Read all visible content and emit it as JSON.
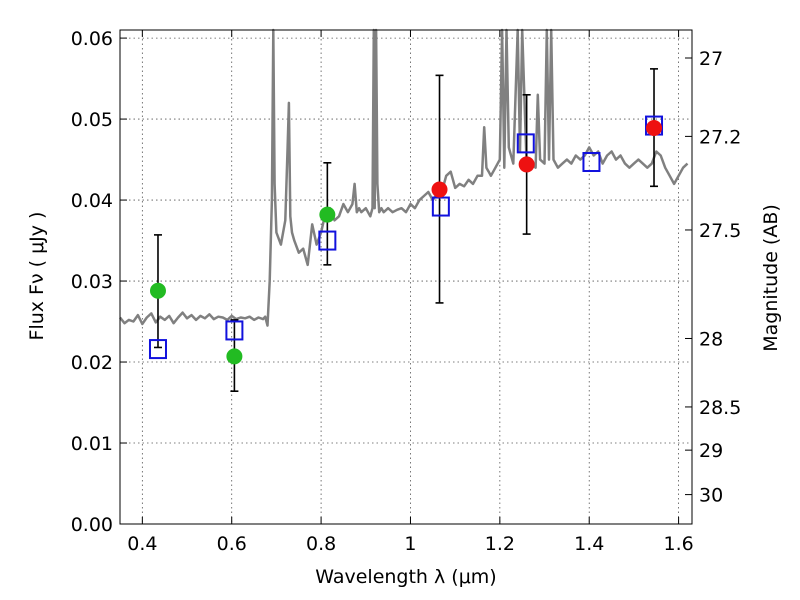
{
  "chart_data": {
    "type": "scatter",
    "title": "",
    "xlabel": "Wavelength  λ (μm)",
    "ylabel": "Flux  Fν  ( μJy )",
    "ylabel_right": "Magnitude (AB)",
    "xlim": [
      0.35,
      1.63
    ],
    "ylim": [
      0.0,
      0.061
    ],
    "grid": true,
    "x_ticks": [
      {
        "value": 0.4,
        "label": "0.4"
      },
      {
        "value": 0.6,
        "label": "0.6"
      },
      {
        "value": 0.8,
        "label": "0.8"
      },
      {
        "value": 1.0,
        "label": "1"
      },
      {
        "value": 1.2,
        "label": "1.2"
      },
      {
        "value": 1.4,
        "label": "1.4"
      },
      {
        "value": 1.6,
        "label": "1.6"
      }
    ],
    "y_ticks": [
      {
        "value": 0.0,
        "label": "0.00"
      },
      {
        "value": 0.01,
        "label": "0.01"
      },
      {
        "value": 0.02,
        "label": "0.02"
      },
      {
        "value": 0.03,
        "label": "0.03"
      },
      {
        "value": 0.04,
        "label": "0.04"
      },
      {
        "value": 0.05,
        "label": "0.05"
      },
      {
        "value": 0.06,
        "label": "0.06"
      }
    ],
    "right_ticks": [
      {
        "label": "27",
        "mag": 27.0
      },
      {
        "label": "27.2",
        "mag": 27.2
      },
      {
        "label": "27.5",
        "mag": 27.5
      },
      {
        "label": "28",
        "mag": 28.0
      },
      {
        "label": "28.5",
        "mag": 28.5
      },
      {
        "label": "29",
        "mag": 29.0
      },
      {
        "label": "30",
        "mag": 30.0
      }
    ],
    "series": [
      {
        "marker": "circle",
        "color": "#22bb22",
        "points": [
          {
            "x": 0.435,
            "y": 0.0288,
            "err_lo": 0.0218,
            "err_hi": 0.0357
          },
          {
            "x": 0.606,
            "y": 0.0207,
            "err_lo": 0.0164,
            "err_hi": 0.0252
          },
          {
            "x": 0.814,
            "y": 0.0382,
            "err_lo": 0.032,
            "err_hi": 0.0446
          }
        ]
      },
      {
        "marker": "circle",
        "color": "#ee1111",
        "points": [
          {
            "x": 1.065,
            "y": 0.0413,
            "err_lo": 0.0273,
            "err_hi": 0.0554
          },
          {
            "x": 1.26,
            "y": 0.0444,
            "err_lo": 0.0358,
            "err_hi": 0.053
          },
          {
            "x": 1.545,
            "y": 0.0489,
            "err_lo": 0.0417,
            "err_hi": 0.0562
          }
        ]
      },
      {
        "marker": "open-square",
        "color": "#1111dd",
        "points": [
          {
            "x": 0.435,
            "y": 0.0216
          },
          {
            "x": 0.606,
            "y": 0.0239
          },
          {
            "x": 0.814,
            "y": 0.035
          },
          {
            "x": 1.068,
            "y": 0.0392
          },
          {
            "x": 1.258,
            "y": 0.047
          },
          {
            "x": 1.405,
            "y": 0.0447
          },
          {
            "x": 1.545,
            "y": 0.0492
          }
        ]
      },
      {
        "type": "line",
        "color": "#808080",
        "x": [
          0.35,
          0.36,
          0.37,
          0.38,
          0.39,
          0.4,
          0.41,
          0.42,
          0.43,
          0.44,
          0.45,
          0.46,
          0.47,
          0.48,
          0.49,
          0.5,
          0.51,
          0.52,
          0.53,
          0.54,
          0.55,
          0.56,
          0.57,
          0.58,
          0.59,
          0.6,
          0.61,
          0.62,
          0.63,
          0.64,
          0.65,
          0.66,
          0.67,
          0.675,
          0.68,
          0.685,
          0.69,
          0.693,
          0.696,
          0.7,
          0.71,
          0.72,
          0.725,
          0.728,
          0.731,
          0.735,
          0.74,
          0.75,
          0.76,
          0.77,
          0.78,
          0.79,
          0.8,
          0.81,
          0.82,
          0.83,
          0.84,
          0.85,
          0.86,
          0.87,
          0.875,
          0.88,
          0.885,
          0.89,
          0.9,
          0.91,
          0.915,
          0.918,
          0.92,
          0.923,
          0.926,
          0.93,
          0.935,
          0.94,
          0.95,
          0.96,
          0.97,
          0.98,
          0.99,
          1.0,
          1.01,
          1.02,
          1.03,
          1.04,
          1.05,
          1.06,
          1.07,
          1.08,
          1.09,
          1.1,
          1.11,
          1.12,
          1.13,
          1.14,
          1.15,
          1.16,
          1.165,
          1.17,
          1.175,
          1.18,
          1.19,
          1.2,
          1.205,
          1.21,
          1.215,
          1.22,
          1.23,
          1.24,
          1.245,
          1.25,
          1.26,
          1.27,
          1.28,
          1.285,
          1.29,
          1.3,
          1.305,
          1.31,
          1.315,
          1.32,
          1.33,
          1.34,
          1.35,
          1.36,
          1.37,
          1.38,
          1.39,
          1.4,
          1.41,
          1.42,
          1.43,
          1.44,
          1.45,
          1.46,
          1.47,
          1.48,
          1.49,
          1.5,
          1.51,
          1.52,
          1.53,
          1.54,
          1.55,
          1.56,
          1.57,
          1.58,
          1.59,
          1.6,
          1.61,
          1.62
        ],
        "y": [
          0.0255,
          0.0248,
          0.0252,
          0.025,
          0.0258,
          0.0247,
          0.0255,
          0.026,
          0.0249,
          0.0256,
          0.0252,
          0.0257,
          0.0248,
          0.0255,
          0.0261,
          0.0254,
          0.0258,
          0.0252,
          0.0257,
          0.0254,
          0.0259,
          0.0253,
          0.0256,
          0.0255,
          0.0252,
          0.0257,
          0.0253,
          0.0255,
          0.0254,
          0.0256,
          0.0252,
          0.0255,
          0.0253,
          0.0256,
          0.0245,
          0.03,
          0.04,
          0.062,
          0.042,
          0.036,
          0.0345,
          0.0375,
          0.0465,
          0.052,
          0.038,
          0.036,
          0.035,
          0.0335,
          0.034,
          0.032,
          0.037,
          0.0345,
          0.036,
          0.0385,
          0.039,
          0.0375,
          0.038,
          0.0395,
          0.0385,
          0.0395,
          0.042,
          0.0385,
          0.039,
          0.0385,
          0.039,
          0.038,
          0.039,
          0.062,
          0.039,
          0.062,
          0.042,
          0.0385,
          0.039,
          0.0385,
          0.039,
          0.0385,
          0.0388,
          0.039,
          0.0385,
          0.0395,
          0.039,
          0.04,
          0.0405,
          0.041,
          0.04,
          0.0408,
          0.041,
          0.043,
          0.0435,
          0.0415,
          0.042,
          0.0417,
          0.0425,
          0.042,
          0.043,
          0.043,
          0.049,
          0.044,
          0.0435,
          0.043,
          0.044,
          0.045,
          0.062,
          0.044,
          0.062,
          0.0465,
          0.0445,
          0.062,
          0.046,
          0.062,
          0.044,
          0.0445,
          0.044,
          0.053,
          0.045,
          0.0445,
          0.062,
          0.045,
          0.062,
          0.045,
          0.044,
          0.0445,
          0.045,
          0.0445,
          0.0455,
          0.045,
          0.0455,
          0.0465,
          0.0455,
          0.046,
          0.0445,
          0.0455,
          0.046,
          0.045,
          0.0455,
          0.0445,
          0.044,
          0.0445,
          0.045,
          0.0445,
          0.044,
          0.0445,
          0.046,
          0.0455,
          0.044,
          0.043,
          0.042,
          0.043,
          0.044,
          0.0445
        ]
      }
    ]
  }
}
